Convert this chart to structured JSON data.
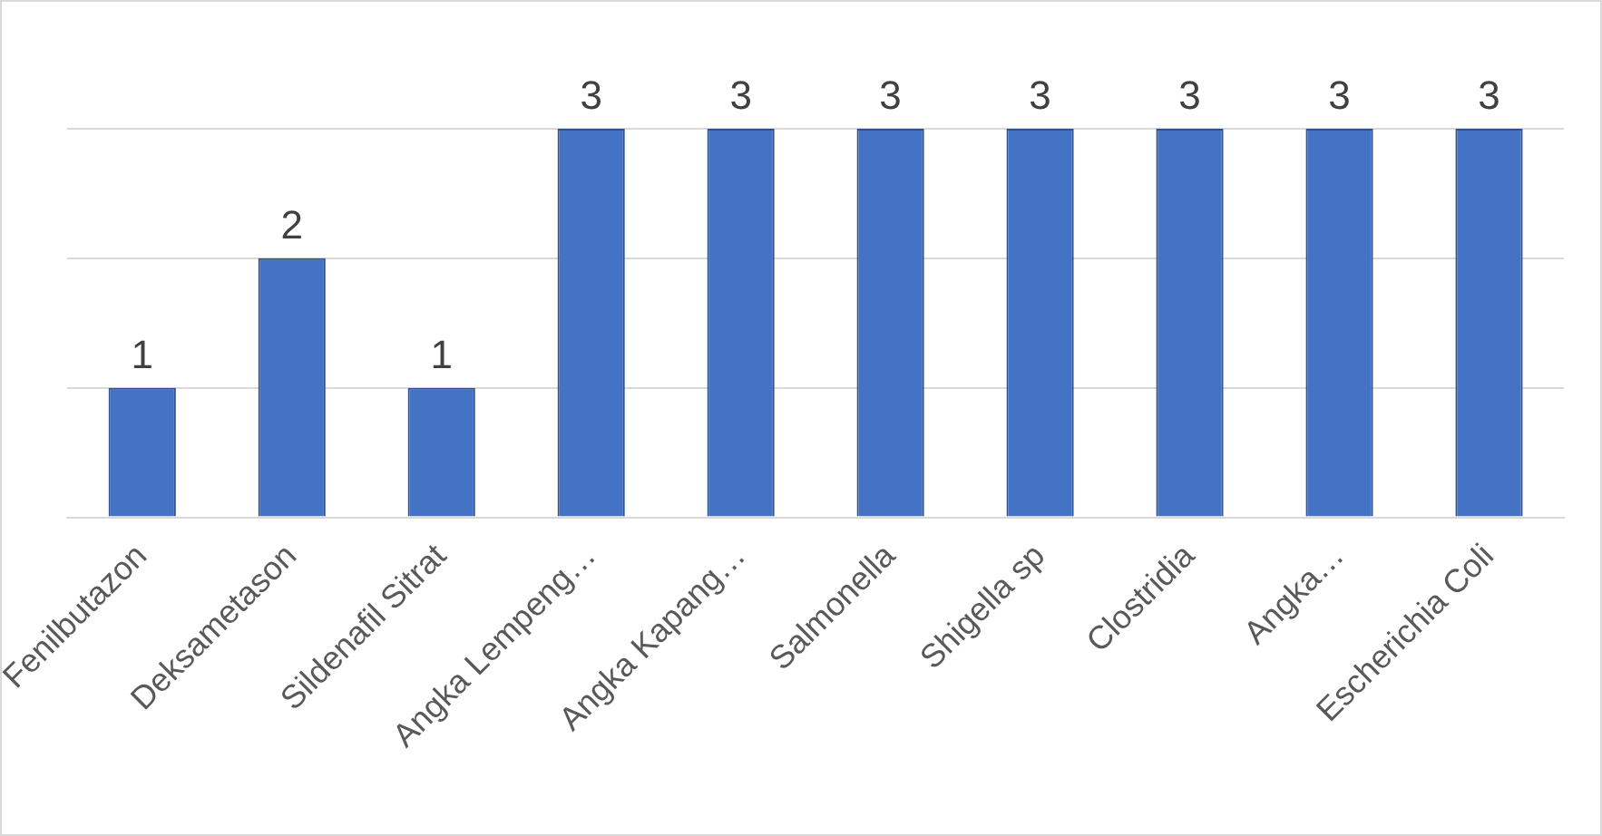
{
  "chart_data": {
    "type": "bar",
    "categories": [
      "Fenilbutazon",
      "Deksametason",
      "Sildenafil Sitrat",
      "Angka Lempeng…",
      "Angka Kapang…",
      "Salmonella",
      "Shigella sp",
      "Clostridia",
      "Angka…",
      "Escherichia Coli"
    ],
    "values": [
      1,
      2,
      1,
      3,
      3,
      3,
      3,
      3,
      3,
      3
    ],
    "color": "#4472c4",
    "ylim": [
      0,
      3
    ],
    "yticks": [
      {
        "value": 0,
        "label": null
      },
      {
        "value": 1,
        "label": null
      },
      {
        "value": 2,
        "label": null
      },
      {
        "value": 3,
        "label": null
      }
    ],
    "grid": "y",
    "tick_labels": "x",
    "data_labels": true,
    "legend": false
  }
}
